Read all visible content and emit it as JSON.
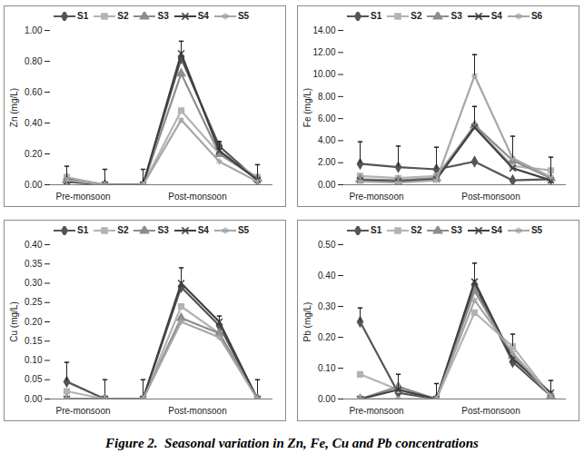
{
  "caption": "Figure 2.  Seasonal variation in Zn, Fe, Cu and Pb concentrations",
  "chart_data": [
    {
      "type": "line",
      "y_label": "Zn (mg/L)",
      "categories": [
        "Pre-monsoon",
        null,
        null,
        "Post-monsoon",
        null,
        null
      ],
      "ylim": [
        0,
        1
      ],
      "yticks": [
        {
          "value": 0,
          "label": "0.00"
        },
        {
          "value": 0.2,
          "label": "0.20"
        },
        {
          "value": 0.4,
          "label": "0.40"
        },
        {
          "value": 0.6,
          "label": "0.60"
        },
        {
          "value": 0.8,
          "label": "0.80"
        },
        {
          "value": 1,
          "label": "1.00"
        }
      ],
      "legend": "top",
      "grid": false,
      "series": [
        {
          "name": "S1",
          "color": "#555555",
          "marker": "diamond",
          "values": [
            0.04,
            0,
            0,
            0.82,
            0.25,
            0.03
          ]
        },
        {
          "name": "S2",
          "color": "#b3b3b3",
          "marker": "square",
          "values": [
            0.05,
            0,
            0,
            0.48,
            0.2,
            0.05
          ]
        },
        {
          "name": "S3",
          "color": "#8c8c8c",
          "marker": "triangle",
          "values": [
            0.03,
            0,
            0,
            0.72,
            0.2,
            0.04
          ]
        },
        {
          "name": "S4",
          "color": "#404040",
          "marker": "times",
          "values": [
            0.02,
            0,
            0,
            0.85,
            0.22,
            0.03
          ],
          "errors": [
            0.1,
            0.1,
            0.1,
            0.08,
            0.06,
            0.1
          ]
        },
        {
          "name": "S5",
          "color": "#a6a6a6",
          "marker": "asterisk",
          "values": [
            0.03,
            0,
            0,
            0.42,
            0.15,
            0.02
          ]
        }
      ]
    },
    {
      "type": "line",
      "y_label": "Fe (mg/L)",
      "categories": [
        "Pre-monsoon",
        null,
        null,
        "Post-monsoon",
        null,
        null
      ],
      "ylim": [
        0,
        14
      ],
      "yticks": [
        {
          "value": 0,
          "label": "0.00"
        },
        {
          "value": 2,
          "label": "2.00"
        },
        {
          "value": 4,
          "label": "4.00"
        },
        {
          "value": 6,
          "label": "6.00"
        },
        {
          "value": 8,
          "label": "8.00"
        },
        {
          "value": 10,
          "label": "10.00"
        },
        {
          "value": 12,
          "label": "12.00"
        },
        {
          "value": 14,
          "label": "14.00"
        }
      ],
      "legend": "top",
      "grid": false,
      "series": [
        {
          "name": "S1",
          "color": "#555555",
          "marker": "diamond",
          "values": [
            1.9,
            1.6,
            1.4,
            2.1,
            0.4,
            0.5
          ],
          "errors": [
            2.0,
            1.9,
            2.0,
            null,
            null,
            null
          ]
        },
        {
          "name": "S2",
          "color": "#b3b3b3",
          "marker": "square",
          "values": [
            0.8,
            0.6,
            0.8,
            5.3,
            1.7,
            1.3
          ]
        },
        {
          "name": "S3",
          "color": "#8c8c8c",
          "marker": "triangle",
          "values": [
            0.5,
            0.4,
            0.6,
            5.4,
            2.2,
            0.6
          ],
          "errors": [
            null,
            null,
            null,
            1.7,
            null,
            null
          ]
        },
        {
          "name": "S4",
          "color": "#404040",
          "marker": "times",
          "values": [
            0.4,
            0.3,
            0.5,
            5.2,
            1.5,
            0.4
          ]
        },
        {
          "name": "S6",
          "color": "#a6a6a6",
          "marker": "asterisk",
          "values": [
            0.3,
            0.2,
            0.4,
            9.9,
            2.4,
            0.7
          ],
          "errors": [
            null,
            null,
            null,
            1.9,
            2.0,
            1.8
          ]
        }
      ]
    },
    {
      "type": "line",
      "y_label": "Cu (mg/L)",
      "categories": [
        "Pre-monsoon",
        null,
        null,
        "Post-monsoon",
        null,
        null
      ],
      "ylim": [
        0,
        0.4
      ],
      "yticks": [
        {
          "value": 0,
          "label": "0.00"
        },
        {
          "value": 0.05,
          "label": "0.05"
        },
        {
          "value": 0.1,
          "label": "0.10"
        },
        {
          "value": 0.15,
          "label": "0.15"
        },
        {
          "value": 0.2,
          "label": "0.20"
        },
        {
          "value": 0.25,
          "label": "0.25"
        },
        {
          "value": 0.3,
          "label": "0.30"
        },
        {
          "value": 0.35,
          "label": "0.35"
        },
        {
          "value": 0.4,
          "label": "0.40"
        }
      ],
      "legend": "top",
      "grid": false,
      "series": [
        {
          "name": "S1",
          "color": "#555555",
          "marker": "diamond",
          "values": [
            0.045,
            0,
            0,
            0.29,
            0.19,
            0
          ],
          "errors": [
            0.05,
            0.05,
            0.05,
            0.05,
            0.025,
            0.05
          ]
        },
        {
          "name": "S2",
          "color": "#b3b3b3",
          "marker": "square",
          "values": [
            0.02,
            0,
            0,
            0.24,
            0.17,
            0
          ]
        },
        {
          "name": "S3",
          "color": "#8c8c8c",
          "marker": "triangle",
          "values": [
            0,
            0,
            0,
            0.21,
            0.17,
            0
          ]
        },
        {
          "name": "S4",
          "color": "#404040",
          "marker": "times",
          "values": [
            0,
            0,
            0,
            0.3,
            0.2,
            0
          ]
        },
        {
          "name": "S5",
          "color": "#a6a6a6",
          "marker": "asterisk",
          "values": [
            0,
            0,
            0,
            0.2,
            0.16,
            0
          ]
        }
      ]
    },
    {
      "type": "line",
      "y_label": "Pb (mg/L)",
      "categories": [
        "Pre-monsoon",
        null,
        null,
        "Post-monsoon",
        null,
        null
      ],
      "ylim": [
        0,
        0.5
      ],
      "yticks": [
        {
          "value": 0,
          "label": "0.00"
        },
        {
          "value": 0.1,
          "label": "0.10"
        },
        {
          "value": 0.2,
          "label": "0.20"
        },
        {
          "value": 0.3,
          "label": "0.30"
        },
        {
          "value": 0.4,
          "label": "0.40"
        },
        {
          "value": 0.5,
          "label": "0.50"
        }
      ],
      "legend": "top",
      "grid": false,
      "series": [
        {
          "name": "S1",
          "color": "#555555",
          "marker": "diamond",
          "values": [
            0.25,
            0.02,
            0,
            0.37,
            0.12,
            0.01
          ],
          "errors": [
            0.045,
            null,
            null,
            null,
            null,
            null
          ]
        },
        {
          "name": "S2",
          "color": "#b3b3b3",
          "marker": "square",
          "values": [
            0.08,
            0.03,
            0,
            0.28,
            0.17,
            0.01
          ],
          "errors": [
            null,
            null,
            null,
            null,
            0.04,
            null
          ]
        },
        {
          "name": "S3",
          "color": "#8c8c8c",
          "marker": "triangle",
          "values": [
            0,
            0.04,
            0,
            0.35,
            0.14,
            0.01
          ]
        },
        {
          "name": "S4",
          "color": "#404040",
          "marker": "times",
          "values": [
            0,
            0.03,
            0,
            0.38,
            0.13,
            0.02
          ],
          "errors": [
            null,
            0.05,
            0.05,
            0.06,
            null,
            0.04
          ]
        },
        {
          "name": "S5",
          "color": "#a6a6a6",
          "marker": "asterisk",
          "values": [
            0,
            0,
            0,
            0.32,
            0.15,
            0.01
          ]
        }
      ]
    }
  ]
}
